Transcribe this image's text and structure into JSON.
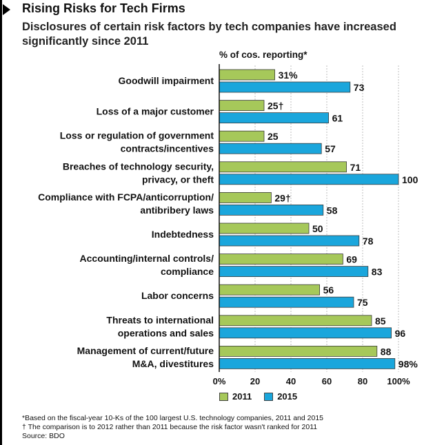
{
  "title": "Rising Risks for Tech Firms",
  "subtitle": "Disclosures of certain risk factors by tech companies have increased significantly since 2011",
  "unit_label": "% of cos. reporting*",
  "colors": {
    "s2011": "#a6c85a",
    "s2015": "#1aa6dc"
  },
  "legend": {
    "a": "2011",
    "b": "2015"
  },
  "footnotes": {
    "star": "*Based on the fiscal-year 10-Ks of the 100 largest U.S. technology companies, 2011 and 2015",
    "dagger": "† The comparison is to 2012 rather than 2011 because the risk factor wasn't ranked for 2011",
    "source": "Source: BDO"
  },
  "chart_data": {
    "type": "bar",
    "orientation": "horizontal",
    "title": "Rising Risks for Tech Firms",
    "xlabel": "% of cos. reporting*",
    "xlim": [
      0,
      100
    ],
    "ticks": [
      "0%",
      "20",
      "40",
      "60",
      "80",
      "100%"
    ],
    "categories": [
      [
        "Goodwill impairment"
      ],
      [
        "Loss of a major customer"
      ],
      [
        "Loss or regulation of government",
        "contracts/incentives"
      ],
      [
        "Breaches of technology security,",
        "privacy, or theft"
      ],
      [
        "Compliance with FCPA/anticorruption/",
        "antibribery laws"
      ],
      [
        "Indebtedness"
      ],
      [
        "Accounting/internal controls/",
        "compliance"
      ],
      [
        "Labor concerns"
      ],
      [
        "Threats to international",
        "operations and sales"
      ],
      [
        "Management of current/future",
        "M&A, divestitures"
      ]
    ],
    "series": [
      {
        "name": "2011",
        "values": [
          31,
          25,
          25,
          71,
          29,
          50,
          69,
          56,
          85,
          88
        ],
        "labels": [
          "31%",
          "25†",
          "25",
          "71",
          "29†",
          "50",
          "69",
          "56",
          "85",
          "88"
        ]
      },
      {
        "name": "2015",
        "values": [
          73,
          61,
          57,
          100,
          58,
          78,
          83,
          75,
          96,
          98
        ],
        "labels": [
          "73",
          "61",
          "57",
          "100",
          "58",
          "78",
          "83",
          "75",
          "96",
          "98%"
        ]
      }
    ]
  }
}
